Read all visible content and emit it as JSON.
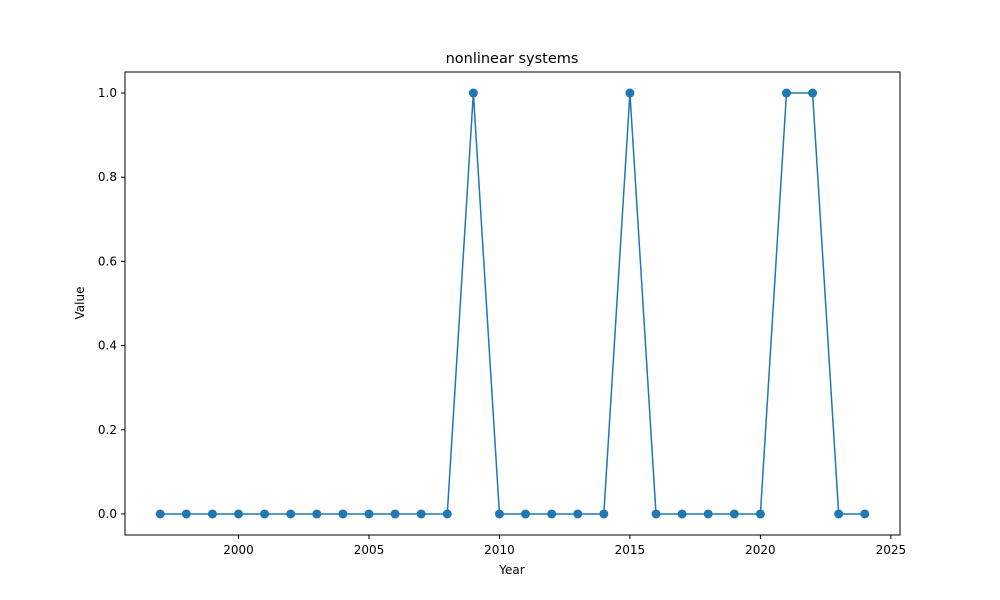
{
  "chart_data": {
    "type": "line",
    "title": "nonlinear systems",
    "xlabel": "Year",
    "ylabel": "Value",
    "xlim": [
      1995.65,
      2025.35
    ],
    "ylim": [
      -0.05,
      1.05
    ],
    "xticks": [
      2000,
      2005,
      2010,
      2015,
      2020,
      2025
    ],
    "yticks": [
      0.0,
      0.2,
      0.4,
      0.6,
      0.8,
      1.0
    ],
    "xtick_labels": [
      "2000",
      "2005",
      "2010",
      "2015",
      "2020",
      "2025"
    ],
    "ytick_labels": [
      "0.0",
      "0.2",
      "0.4",
      "0.6",
      "0.8",
      "1.0"
    ],
    "grid": false,
    "series": [
      {
        "color": "#1f77b4",
        "marker": "circle",
        "x": [
          1997,
          1998,
          1999,
          2000,
          2001,
          2002,
          2003,
          2004,
          2005,
          2006,
          2007,
          2008,
          2009,
          2010,
          2011,
          2012,
          2013,
          2014,
          2015,
          2016,
          2017,
          2018,
          2019,
          2020,
          2021,
          2022,
          2023,
          2024
        ],
        "y": [
          0,
          0,
          0,
          0,
          0,
          0,
          0,
          0,
          0,
          0,
          0,
          0,
          1,
          0,
          0,
          0,
          0,
          0,
          1,
          0,
          0,
          0,
          0,
          0,
          1,
          1,
          0,
          0
        ]
      }
    ]
  }
}
